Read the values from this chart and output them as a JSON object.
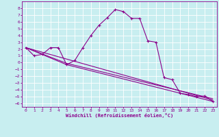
{
  "xlabel": "Windchill (Refroidissement éolien,°C)",
  "background_color": "#c8eef0",
  "line_color": "#8b008b",
  "grid_color": "#b0dde0",
  "xlim": [
    -0.5,
    23.5
  ],
  "ylim": [
    -6.5,
    9.0
  ],
  "xticks": [
    0,
    1,
    2,
    3,
    4,
    5,
    6,
    7,
    8,
    9,
    10,
    11,
    12,
    13,
    14,
    15,
    16,
    17,
    18,
    19,
    20,
    21,
    22,
    23
  ],
  "yticks": [
    -6,
    -5,
    -4,
    -3,
    -2,
    -1,
    0,
    1,
    2,
    3,
    4,
    5,
    6,
    7,
    8
  ],
  "series1_x": [
    0,
    1,
    2,
    3,
    4,
    5,
    6,
    7,
    8,
    9,
    10,
    11,
    12,
    13,
    14,
    15,
    16,
    17,
    18,
    19,
    20,
    21,
    22,
    23
  ],
  "series1_y": [
    2.2,
    1.0,
    1.2,
    2.2,
    2.2,
    -0.3,
    0.3,
    2.2,
    4.0,
    5.5,
    6.6,
    7.8,
    7.5,
    6.5,
    6.5,
    3.2,
    3.0,
    -2.2,
    -2.5,
    -4.5,
    -4.7,
    -5.0,
    -4.9,
    -5.7
  ],
  "series2_x": [
    0,
    23
  ],
  "series2_y": [
    2.2,
    -5.5
  ],
  "series3_x": [
    0,
    5,
    23
  ],
  "series3_y": [
    2.2,
    -0.3,
    -5.7
  ],
  "series4_x": [
    0,
    5,
    23
  ],
  "series4_y": [
    2.2,
    -0.1,
    -5.3
  ],
  "font_family": "monospace"
}
